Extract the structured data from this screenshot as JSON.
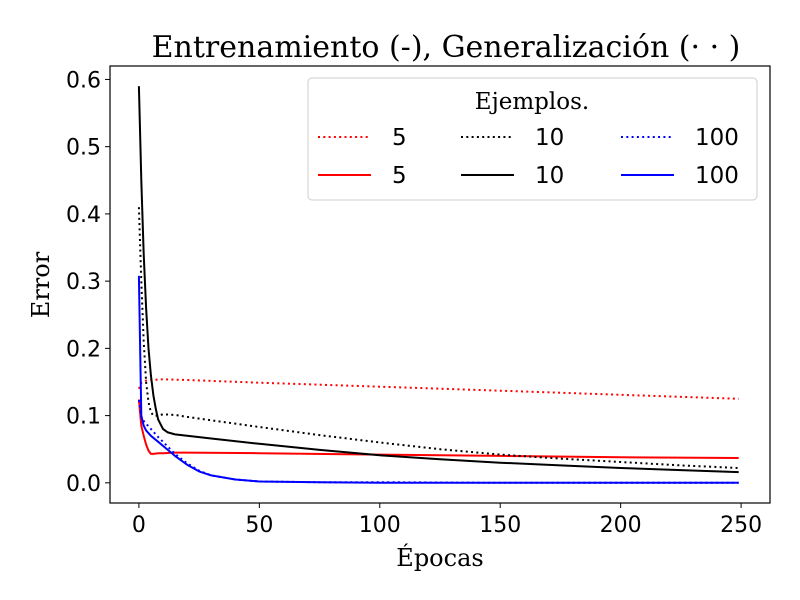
{
  "chart_data": {
    "type": "line",
    "title": "Entrenamiento (-), Generalización (· · )",
    "xlabel": "Épocas",
    "ylabel": "Error",
    "xlim": [
      -12,
      262
    ],
    "ylim": [
      -0.03,
      0.62
    ],
    "xticks": [
      0,
      50,
      100,
      150,
      200,
      250
    ],
    "yticks": [
      0.0,
      0.1,
      0.2,
      0.3,
      0.4,
      0.5,
      0.6
    ],
    "ytick_labels": [
      "0.0",
      "0.1",
      "0.2",
      "0.3",
      "0.4",
      "0.5",
      "0.6"
    ],
    "grid": false,
    "legend": {
      "title": "Ejemplos.",
      "placement": "top-right",
      "columns": 3
    },
    "series": [
      {
        "name": "5",
        "color": "#ff0000",
        "style": "dotted",
        "x": [
          0,
          1,
          2,
          3,
          5,
          10,
          20,
          50,
          100,
          150,
          200,
          249
        ],
        "y": [
          0.14,
          0.149,
          0.151,
          0.152,
          0.153,
          0.154,
          0.153,
          0.149,
          0.143,
          0.137,
          0.131,
          0.125
        ]
      },
      {
        "name": "5",
        "color": "#ff0000",
        "style": "solid",
        "x": [
          0,
          1,
          2,
          3,
          4,
          5,
          6,
          8,
          10,
          15,
          20,
          50,
          100,
          150,
          200,
          249
        ],
        "y": [
          0.124,
          0.085,
          0.07,
          0.057,
          0.048,
          0.043,
          0.043,
          0.044,
          0.044,
          0.045,
          0.045,
          0.044,
          0.042,
          0.04,
          0.038,
          0.037
        ]
      },
      {
        "name": "10",
        "color": "#000000",
        "style": "dotted",
        "x": [
          0,
          1,
          2,
          3,
          4,
          5,
          6,
          8,
          10,
          15,
          20,
          30,
          50,
          75,
          100,
          125,
          150,
          175,
          200,
          225,
          249
        ],
        "y": [
          0.41,
          0.3,
          0.21,
          0.15,
          0.12,
          0.105,
          0.1,
          0.1,
          0.102,
          0.101,
          0.098,
          0.093,
          0.083,
          0.071,
          0.06,
          0.05,
          0.042,
          0.036,
          0.031,
          0.026,
          0.022
        ]
      },
      {
        "name": "10",
        "color": "#000000",
        "style": "solid",
        "x": [
          0,
          1,
          2,
          3,
          4,
          5,
          6,
          7,
          8,
          10,
          12,
          15,
          20,
          30,
          50,
          75,
          100,
          125,
          150,
          175,
          200,
          225,
          249
        ],
        "y": [
          0.59,
          0.45,
          0.34,
          0.26,
          0.2,
          0.16,
          0.13,
          0.11,
          0.094,
          0.08,
          0.075,
          0.072,
          0.07,
          0.066,
          0.058,
          0.049,
          0.041,
          0.035,
          0.03,
          0.026,
          0.022,
          0.019,
          0.016
        ]
      },
      {
        "name": "100",
        "color": "#0000ff",
        "style": "dotted",
        "x": [
          0,
          1,
          2,
          3,
          5,
          8,
          10,
          15,
          20,
          25,
          30,
          40,
          50,
          75,
          100,
          150,
          200,
          249
        ],
        "y": [
          0.123,
          0.097,
          0.092,
          0.088,
          0.08,
          0.068,
          0.061,
          0.043,
          0.029,
          0.018,
          0.011,
          0.005,
          0.002,
          0.001,
          0.001,
          0.0,
          0.0,
          0.0
        ]
      },
      {
        "name": "100",
        "color": "#0000ff",
        "style": "solid",
        "x": [
          0,
          1,
          2,
          3,
          5,
          8,
          10,
          15,
          20,
          25,
          30,
          40,
          50,
          75,
          100,
          150,
          200,
          249
        ],
        "y": [
          0.308,
          0.1,
          0.085,
          0.078,
          0.07,
          0.061,
          0.055,
          0.04,
          0.027,
          0.017,
          0.011,
          0.005,
          0.002,
          0.001,
          0.0,
          0.0,
          0.0,
          0.0
        ]
      }
    ]
  }
}
